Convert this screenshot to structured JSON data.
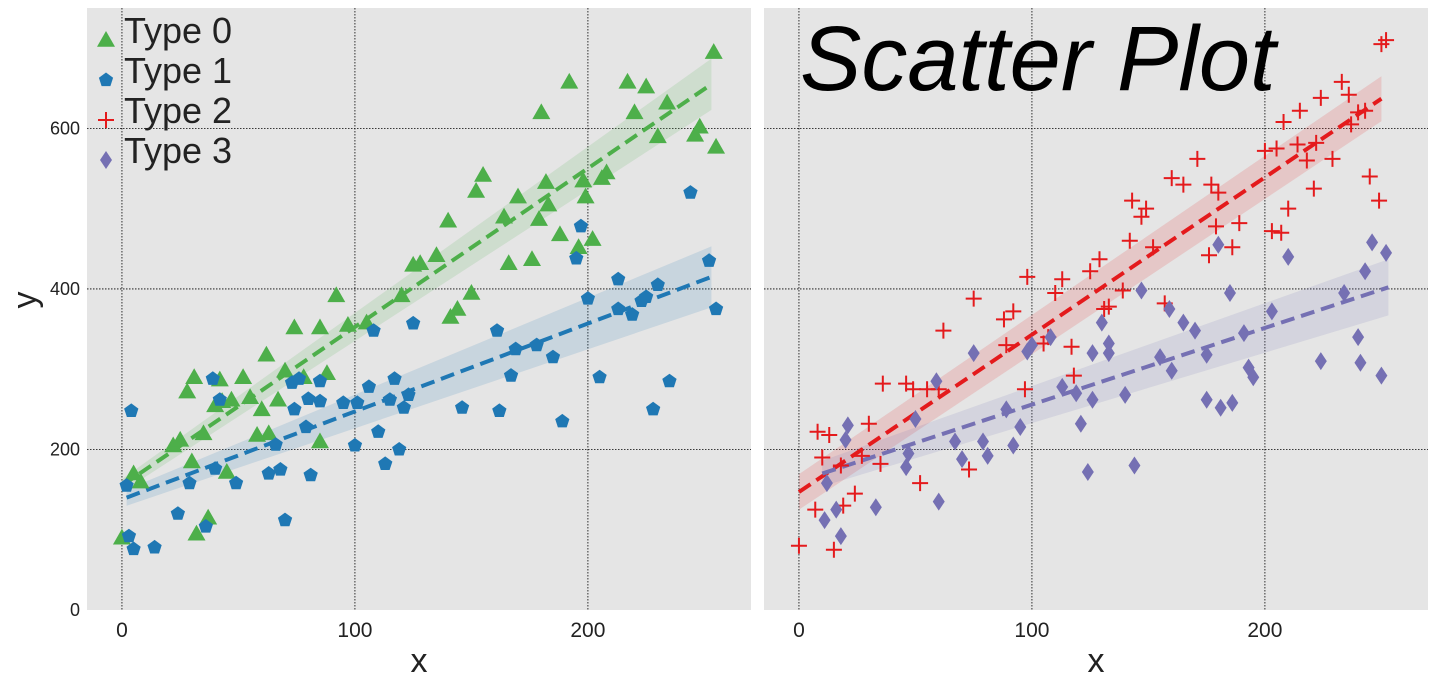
{
  "chart_data": [
    {
      "type": "scatter",
      "panel": "left",
      "title": "",
      "xlabel": "x",
      "ylabel": "y",
      "xlim": [
        -15,
        270
      ],
      "ylim": [
        0,
        750
      ],
      "xticks": [
        "0",
        "100",
        "200"
      ],
      "yticks": [
        "0",
        "200",
        "400",
        "600"
      ],
      "grid": true,
      "legend": {
        "placement": "top-left",
        "entries": [
          "Type 0",
          "Type 1",
          "Type 2",
          "Type 3"
        ]
      },
      "series": [
        {
          "name": "Type 0",
          "color": "#4daf4a",
          "marker": "triangle",
          "points": [
            [
              0,
              90
            ],
            [
              5,
              170
            ],
            [
              8,
              160
            ],
            [
              22,
              205
            ],
            [
              25,
              212
            ],
            [
              28,
              272
            ],
            [
              30,
              185
            ],
            [
              31,
              290
            ],
            [
              32,
              95
            ],
            [
              35,
              220
            ],
            [
              37,
              115
            ],
            [
              40,
              255
            ],
            [
              42,
              287
            ],
            [
              43,
              260
            ],
            [
              45,
              172
            ],
            [
              47,
              262
            ],
            [
              52,
              290
            ],
            [
              55,
              265
            ],
            [
              58,
              218
            ],
            [
              60,
              250
            ],
            [
              62,
              318
            ],
            [
              63,
              220
            ],
            [
              67,
              262
            ],
            [
              70,
              298
            ],
            [
              74,
              352
            ],
            [
              78,
              290
            ],
            [
              85,
              352
            ],
            [
              85,
              210
            ],
            [
              88,
              295
            ],
            [
              92,
              392
            ],
            [
              97,
              355
            ],
            [
              105,
              358
            ],
            [
              120,
              392
            ],
            [
              125,
              430
            ],
            [
              128,
              432
            ],
            [
              135,
              442
            ],
            [
              140,
              485
            ],
            [
              141,
              365
            ],
            [
              144,
              375
            ],
            [
              150,
              395
            ],
            [
              152,
              522
            ],
            [
              155,
              542
            ],
            [
              164,
              490
            ],
            [
              166,
              432
            ],
            [
              170,
              515
            ],
            [
              176,
              437
            ],
            [
              179,
              487
            ],
            [
              180,
              620
            ],
            [
              183,
              505
            ],
            [
              182,
              533
            ],
            [
              188,
              468
            ],
            [
              192,
              658
            ],
            [
              196,
              452
            ],
            [
              198,
              535
            ],
            [
              199,
              515
            ],
            [
              202,
              462
            ],
            [
              206,
              538
            ],
            [
              208,
              545
            ],
            [
              217,
              658
            ],
            [
              220,
              620
            ],
            [
              225,
              652
            ],
            [
              230,
              590
            ],
            [
              234,
              632
            ],
            [
              246,
              592
            ],
            [
              248,
              602
            ],
            [
              254,
              695
            ],
            [
              255,
              577
            ]
          ],
          "fit": {
            "x0": 0,
            "y0": 155,
            "x1": 253,
            "y1": 655,
            "band": [
              [
                0,
                8
              ],
              [
                253,
                32
              ]
            ]
          }
        },
        {
          "name": "Type 1",
          "color": "#1f78b4",
          "marker": "pentagon",
          "points": [
            [
              2,
              155
            ],
            [
              3,
              92
            ],
            [
              4,
              248
            ],
            [
              5,
              76
            ],
            [
              14,
              78
            ],
            [
              24,
              120
            ],
            [
              29,
              158
            ],
            [
              36,
              104
            ],
            [
              39,
              288
            ],
            [
              40,
              176
            ],
            [
              42,
              262
            ],
            [
              49,
              158
            ],
            [
              63,
              170
            ],
            [
              66,
              206
            ],
            [
              68,
              175
            ],
            [
              70,
              112
            ],
            [
              73,
              283
            ],
            [
              74,
              250
            ],
            [
              76,
              288
            ],
            [
              79,
              228
            ],
            [
              80,
              263
            ],
            [
              81,
              168
            ],
            [
              85,
              285
            ],
            [
              85,
              260
            ],
            [
              95,
              258
            ],
            [
              100,
              205
            ],
            [
              101,
              258
            ],
            [
              106,
              278
            ],
            [
              108,
              348
            ],
            [
              110,
              222
            ],
            [
              113,
              182
            ],
            [
              115,
              262
            ],
            [
              117,
              288
            ],
            [
              119,
              200
            ],
            [
              121,
              252
            ],
            [
              123,
              268
            ],
            [
              125,
              357
            ],
            [
              146,
              252
            ],
            [
              161,
              348
            ],
            [
              162,
              248
            ],
            [
              167,
              292
            ],
            [
              169,
              325
            ],
            [
              178,
              330
            ],
            [
              185,
              315
            ],
            [
              189,
              235
            ],
            [
              195,
              438
            ],
            [
              197,
              478
            ],
            [
              200,
              388
            ],
            [
              205,
              290
            ],
            [
              213,
              412
            ],
            [
              213,
              375
            ],
            [
              219,
              368
            ],
            [
              223,
              385
            ],
            [
              225,
              390
            ],
            [
              228,
              250
            ],
            [
              230,
              405
            ],
            [
              235,
              285
            ],
            [
              244,
              520
            ],
            [
              252,
              435
            ],
            [
              255,
              375
            ]
          ],
          "fit": {
            "x0": 2,
            "y0": 140,
            "x1": 253,
            "y1": 415,
            "band": [
              [
                2,
                10
              ],
              [
                253,
                38
              ]
            ]
          }
        }
      ]
    },
    {
      "type": "scatter",
      "panel": "right",
      "title": "Scatter Plot",
      "xlabel": "x",
      "ylabel": "",
      "xlim": [
        -15,
        270
      ],
      "ylim": [
        0,
        750
      ],
      "xticks": [
        "0",
        "100",
        "200"
      ],
      "yticks": [],
      "grid": true,
      "series": [
        {
          "name": "Type 2",
          "color": "#e41a1c",
          "marker": "plus",
          "points": [
            [
              0,
              80
            ],
            [
              7,
              125
            ],
            [
              8,
              222
            ],
            [
              10,
              190
            ],
            [
              13,
              218
            ],
            [
              15,
              75
            ],
            [
              18,
              180
            ],
            [
              19,
              130
            ],
            [
              24,
              145
            ],
            [
              27,
              192
            ],
            [
              30,
              232
            ],
            [
              35,
              182
            ],
            [
              36,
              282
            ],
            [
              46,
              282
            ],
            [
              49,
              275
            ],
            [
              52,
              158
            ],
            [
              55,
              275
            ],
            [
              60,
              275
            ],
            [
              62,
              348
            ],
            [
              73,
              175
            ],
            [
              75,
              388
            ],
            [
              88,
              362
            ],
            [
              89,
              330
            ],
            [
              92,
              372
            ],
            [
              97,
              275
            ],
            [
              98,
              415
            ],
            [
              105,
              332
            ],
            [
              107,
              340
            ],
            [
              110,
              395
            ],
            [
              113,
              412
            ],
            [
              117,
              328
            ],
            [
              118,
              292
            ],
            [
              125,
              422
            ],
            [
              129,
              437
            ],
            [
              131,
              375
            ],
            [
              133,
              378
            ],
            [
              139,
              398
            ],
            [
              142,
              460
            ],
            [
              143,
              510
            ],
            [
              147,
              490
            ],
            [
              149,
              500
            ],
            [
              152,
              452
            ],
            [
              157,
              382
            ],
            [
              160,
              538
            ],
            [
              165,
              530
            ],
            [
              171,
              562
            ],
            [
              176,
              442
            ],
            [
              177,
              530
            ],
            [
              179,
              478
            ],
            [
              180,
              520
            ],
            [
              186,
              452
            ],
            [
              189,
              482
            ],
            [
              200,
              572
            ],
            [
              203,
              472
            ],
            [
              205,
              575
            ],
            [
              207,
              470
            ],
            [
              208,
              608
            ],
            [
              210,
              500
            ],
            [
              214,
              580
            ],
            [
              215,
              622
            ],
            [
              218,
              560
            ],
            [
              221,
              525
            ],
            [
              222,
              582
            ],
            [
              224,
              638
            ],
            [
              229,
              562
            ],
            [
              233,
              658
            ],
            [
              236,
              642
            ],
            [
              237,
              605
            ],
            [
              240,
              620
            ],
            [
              243,
              622
            ],
            [
              245,
              540
            ],
            [
              249,
              510
            ],
            [
              250,
              705
            ],
            [
              252,
              710
            ]
          ],
          "fit": {
            "x0": 0,
            "y0": 147,
            "x1": 250,
            "y1": 637,
            "band": [
              [
                0,
                22
              ],
              [
                250,
                28
              ]
            ]
          }
        },
        {
          "name": "Type 3",
          "color": "#7570b3",
          "marker": "diamond",
          "points": [
            [
              11,
              112
            ],
            [
              12,
              158
            ],
            [
              16,
              125
            ],
            [
              18,
              92
            ],
            [
              20,
              212
            ],
            [
              21,
              230
            ],
            [
              33,
              128
            ],
            [
              46,
              178
            ],
            [
              47,
              195
            ],
            [
              50,
              238
            ],
            [
              59,
              285
            ],
            [
              60,
              135
            ],
            [
              67,
              210
            ],
            [
              70,
              188
            ],
            [
              75,
              320
            ],
            [
              79,
              210
            ],
            [
              81,
              192
            ],
            [
              89,
              250
            ],
            [
              92,
              205
            ],
            [
              95,
              228
            ],
            [
              98,
              322
            ],
            [
              100,
              330
            ],
            [
              108,
              340
            ],
            [
              113,
              278
            ],
            [
              119,
              270
            ],
            [
              121,
              232
            ],
            [
              124,
              172
            ],
            [
              126,
              320
            ],
            [
              126,
              262
            ],
            [
              130,
              358
            ],
            [
              133,
              332
            ],
            [
              133,
              320
            ],
            [
              140,
              268
            ],
            [
              144,
              180
            ],
            [
              147,
              398
            ],
            [
              155,
              315
            ],
            [
              159,
              375
            ],
            [
              160,
              298
            ],
            [
              165,
              358
            ],
            [
              170,
              348
            ],
            [
              175,
              262
            ],
            [
              175,
              318
            ],
            [
              180,
              455
            ],
            [
              181,
              252
            ],
            [
              185,
              395
            ],
            [
              186,
              258
            ],
            [
              191,
              345
            ],
            [
              193,
              302
            ],
            [
              195,
              290
            ],
            [
              203,
              372
            ],
            [
              210,
              440
            ],
            [
              224,
              310
            ],
            [
              234,
              395
            ],
            [
              240,
              340
            ],
            [
              241,
              308
            ],
            [
              243,
              422
            ],
            [
              246,
              458
            ],
            [
              250,
              292
            ],
            [
              252,
              445
            ]
          ],
          "fit": {
            "x0": 10,
            "y0": 170,
            "x1": 253,
            "y1": 402,
            "band": [
              [
                10,
                16
              ],
              [
                253,
                35
              ]
            ]
          }
        }
      ]
    }
  ]
}
